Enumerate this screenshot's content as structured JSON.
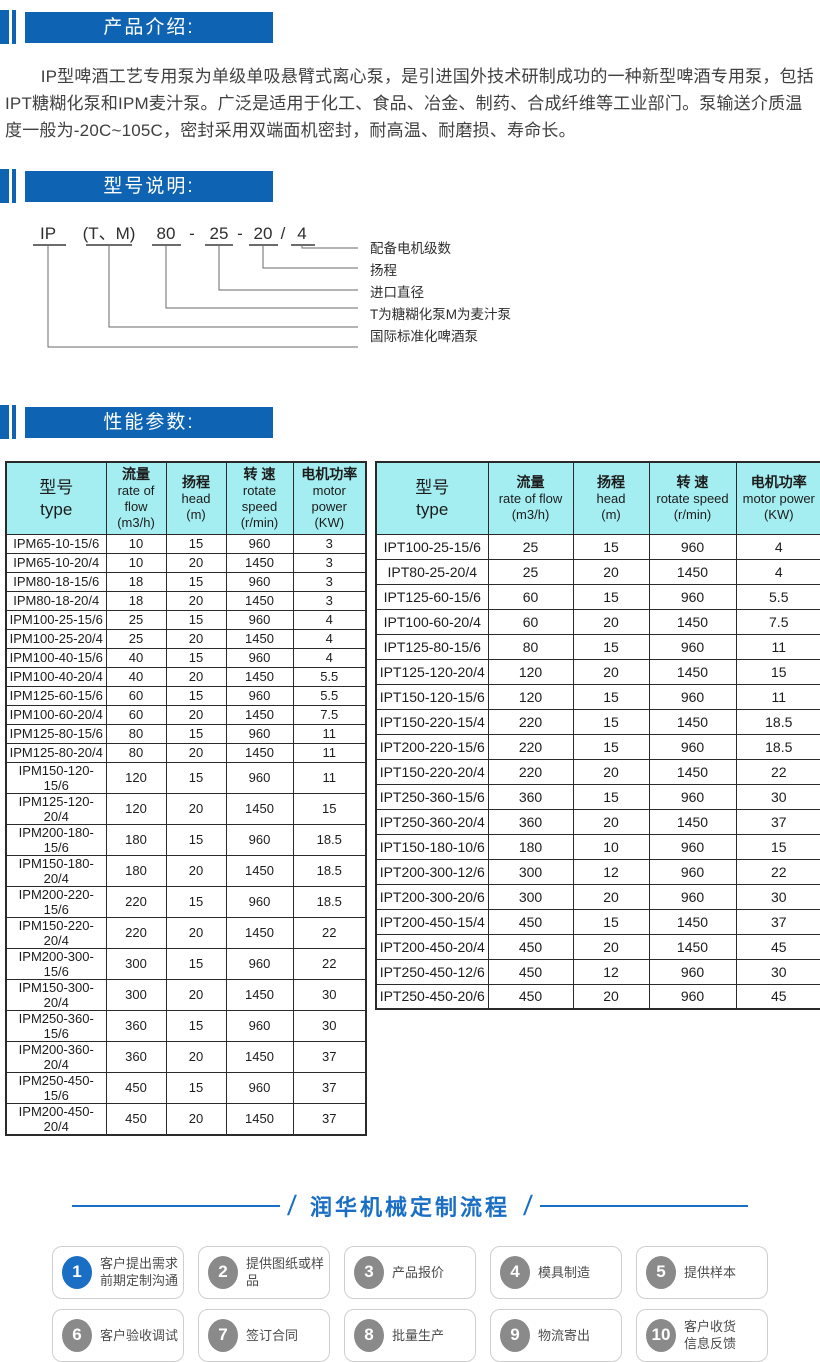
{
  "colors": {
    "primary_blue": "#0e64b2",
    "accent_blue": "#1a6fc4",
    "table_header_bg": "#a4eef1",
    "table_border": "#2a2a2a",
    "step_gray": "#8a8a8a"
  },
  "intro": {
    "heading": "产品介绍:",
    "paragraph": "IP型啤酒工艺专用泵为单级单吸悬臂式离心泵，是引进国外技术研制成功的一种新型啤酒专用泵，包括IPT糖糊化泵和IPM麦汁泵。广泛是适用于化工、食品、冶金、制药、合成纤维等工业部门。泵输送介质温度一般为-20C~105C，密封采用双端面机密封，耐高温、耐磨损、寿命长。"
  },
  "model": {
    "heading": "型号说明:",
    "segments": [
      "IP",
      "(T、M)",
      "80",
      "-",
      "25",
      "-",
      "20",
      "/",
      "4"
    ],
    "labels": [
      "配备电机级数",
      "扬程",
      "进口直径",
      "T为糖糊化泵M为麦汁泵",
      "国际标准化啤酒泵"
    ]
  },
  "performance": {
    "heading": "性能参数:",
    "tables": [
      {
        "headers": [
          [
            "型号",
            "type"
          ],
          [
            "流量",
            "rate of flow",
            "(m3/h)"
          ],
          [
            "扬程",
            "head",
            "(m)"
          ],
          [
            "转 速",
            "rotate speed",
            "(r/min)"
          ],
          [
            "电机功率",
            "motor power",
            "(KW)"
          ]
        ],
        "rows": [
          [
            "IPM65-10-15/6",
            "10",
            "15",
            "960",
            "3"
          ],
          [
            "IPM65-10-20/4",
            "10",
            "20",
            "1450",
            "3"
          ],
          [
            "IPM80-18-15/6",
            "18",
            "15",
            "960",
            "3"
          ],
          [
            "IPM80-18-20/4",
            "18",
            "20",
            "1450",
            "3"
          ],
          [
            "IPM100-25-15/6",
            "25",
            "15",
            "960",
            "4"
          ],
          [
            "IPM100-25-20/4",
            "25",
            "20",
            "1450",
            "4"
          ],
          [
            "IPM100-40-15/6",
            "40",
            "15",
            "960",
            "4"
          ],
          [
            "IPM100-40-20/4",
            "40",
            "20",
            "1450",
            "5.5"
          ],
          [
            "IPM125-60-15/6",
            "60",
            "15",
            "960",
            "5.5"
          ],
          [
            "IPM100-60-20/4",
            "60",
            "20",
            "1450",
            "7.5"
          ],
          [
            "IPM125-80-15/6",
            "80",
            "15",
            "960",
            "11"
          ],
          [
            "IPM125-80-20/4",
            "80",
            "20",
            "1450",
            "11"
          ],
          [
            "IPM150-120-15/6",
            "120",
            "15",
            "960",
            "11"
          ],
          [
            "IPM125-120-20/4",
            "120",
            "20",
            "1450",
            "15"
          ],
          [
            "IPM200-180-15/6",
            "180",
            "15",
            "960",
            "18.5"
          ],
          [
            "IPM150-180-20/4",
            "180",
            "20",
            "1450",
            "18.5"
          ],
          [
            "IPM200-220-15/6",
            "220",
            "15",
            "960",
            "18.5"
          ],
          [
            "IPM150-220-20/4",
            "220",
            "20",
            "1450",
            "22"
          ],
          [
            "IPM200-300-15/6",
            "300",
            "15",
            "960",
            "22"
          ],
          [
            "IPM150-300-20/4",
            "300",
            "20",
            "1450",
            "30"
          ],
          [
            "IPM250-360-15/6",
            "360",
            "15",
            "960",
            "30"
          ],
          [
            "IPM200-360-20/4",
            "360",
            "20",
            "1450",
            "37"
          ],
          [
            "IPM250-450-15/6",
            "450",
            "15",
            "960",
            "37"
          ],
          [
            "IPM200-450-20/4",
            "450",
            "20",
            "1450",
            "37"
          ]
        ]
      },
      {
        "headers": [
          [
            "型号",
            "type"
          ],
          [
            "流量",
            "rate of flow",
            "(m3/h)"
          ],
          [
            "扬程",
            "head",
            "(m)"
          ],
          [
            "转 速",
            "rotate speed",
            "(r/min)"
          ],
          [
            "电机功率",
            "motor power",
            "(KW)"
          ]
        ],
        "rows": [
          [
            "IPT100-25-15/6",
            "25",
            "15",
            "960",
            "4"
          ],
          [
            "IPT80-25-20/4",
            "25",
            "20",
            "1450",
            "4"
          ],
          [
            "IPT125-60-15/6",
            "60",
            "15",
            "960",
            "5.5"
          ],
          [
            "IPT100-60-20/4",
            "60",
            "20",
            "1450",
            "7.5"
          ],
          [
            "IPT125-80-15/6",
            "80",
            "15",
            "960",
            "11"
          ],
          [
            "IPT125-120-20/4",
            "120",
            "20",
            "1450",
            "15"
          ],
          [
            "IPT150-120-15/6",
            "120",
            "15",
            "960",
            "11"
          ],
          [
            "IPT150-220-15/4",
            "220",
            "15",
            "1450",
            "18.5"
          ],
          [
            "IPT200-220-15/6",
            "220",
            "15",
            "960",
            "18.5"
          ],
          [
            "IPT150-220-20/4",
            "220",
            "20",
            "1450",
            "22"
          ],
          [
            "IPT250-360-15/6",
            "360",
            "15",
            "960",
            "30"
          ],
          [
            "IPT250-360-20/4",
            "360",
            "20",
            "1450",
            "37"
          ],
          [
            "IPT150-180-10/6",
            "180",
            "10",
            "960",
            "15"
          ],
          [
            "IPT200-300-12/6",
            "300",
            "12",
            "960",
            "22"
          ],
          [
            "IPT200-300-20/6",
            "300",
            "20",
            "960",
            "30"
          ],
          [
            "IPT200-450-15/4",
            "450",
            "15",
            "1450",
            "37"
          ],
          [
            "IPT200-450-20/4",
            "450",
            "20",
            "1450",
            "45"
          ],
          [
            "IPT250-450-12/6",
            "450",
            "12",
            "960",
            "30"
          ],
          [
            "IPT250-450-20/6",
            "450",
            "20",
            "960",
            "45"
          ]
        ]
      }
    ]
  },
  "process": {
    "title": "润华机械定制流程",
    "steps": [
      {
        "num": "1",
        "lines": [
          "客户提出需求",
          "前期定制沟通"
        ],
        "accent": true
      },
      {
        "num": "2",
        "lines": [
          "提供图纸或样品"
        ],
        "accent": false
      },
      {
        "num": "3",
        "lines": [
          "产品报价"
        ],
        "accent": false
      },
      {
        "num": "4",
        "lines": [
          "模具制造"
        ],
        "accent": false
      },
      {
        "num": "5",
        "lines": [
          "提供样本"
        ],
        "accent": false
      },
      {
        "num": "6",
        "lines": [
          "客户验收调试"
        ],
        "accent": false
      },
      {
        "num": "7",
        "lines": [
          "签订合同"
        ],
        "accent": false
      },
      {
        "num": "8",
        "lines": [
          "批量生产"
        ],
        "accent": false
      },
      {
        "num": "9",
        "lines": [
          "物流寄出"
        ],
        "accent": false
      },
      {
        "num": "10",
        "lines": [
          "客户收货",
          "信息反馈"
        ],
        "accent": false
      }
    ]
  }
}
